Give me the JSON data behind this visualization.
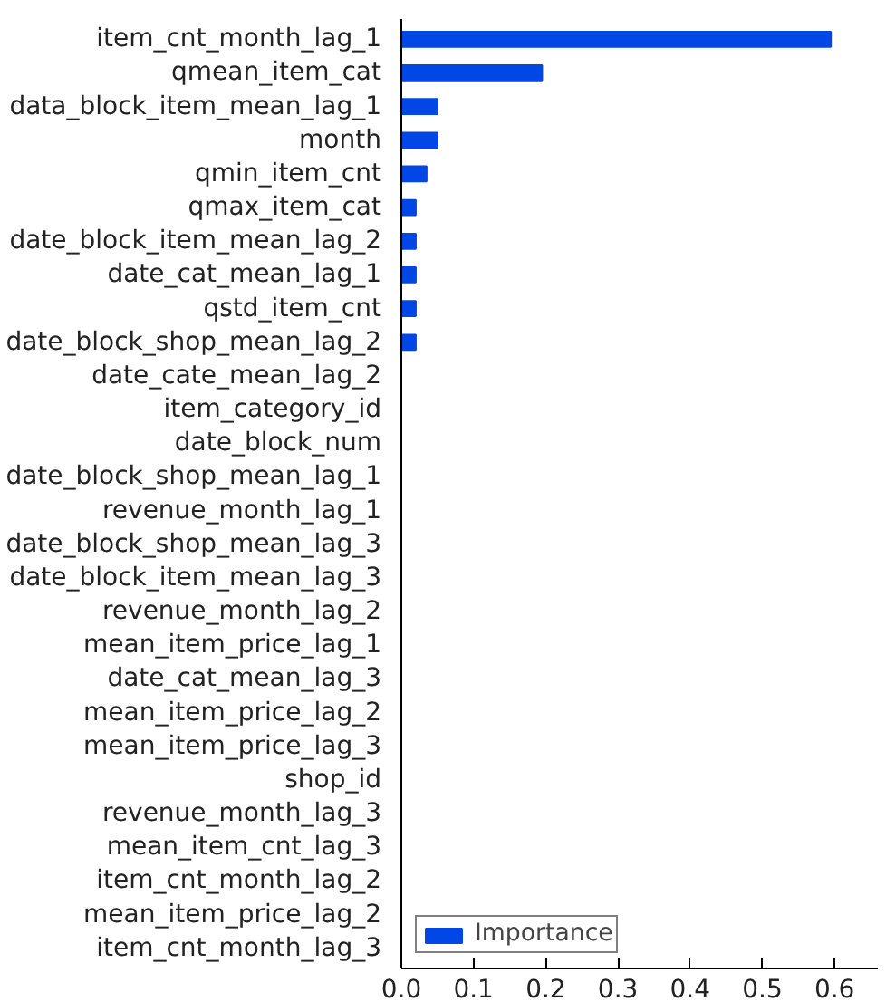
{
  "chart_data": {
    "type": "bar",
    "orientation": "horizontal",
    "categories": [
      "item_cnt_month_lag_1",
      "qmean_item_cat",
      "data_block_item_mean_lag_1",
      "month",
      "qmin_item_cnt",
      "qmax_item_cat",
      "date_block_item_mean_lag_2",
      "date_cat_mean_lag_1",
      "qstd_item_cnt",
      "date_block_shop_mean_lag_2",
      "date_cate_mean_lag_2",
      "item_category_id",
      "date_block_num",
      "date_block_shop_mean_lag_1",
      "revenue_month_lag_1",
      "date_block_shop_mean_lag_3",
      "date_block_item_mean_lag_3",
      "revenue_month_lag_2",
      "mean_item_price_lag_1",
      "date_cat_mean_lag_3",
      "mean_item_price_lag_2",
      "mean_item_price_lag_3",
      "shop_id",
      "revenue_month_lag_3",
      "mean_item_cnt_lag_3",
      "item_cnt_month_lag_2",
      "mean_item_price_lag_2",
      "item_cnt_month_lag_3"
    ],
    "series": [
      {
        "name": "Importance",
        "color": "#0047e6",
        "values": [
          0.595,
          0.195,
          0.05,
          0.05,
          0.035,
          0.02,
          0.02,
          0.02,
          0.02,
          0.02,
          0,
          0,
          0,
          0,
          0,
          0,
          0,
          0,
          0,
          0,
          0,
          0,
          0,
          0,
          0,
          0,
          0,
          0
        ]
      }
    ],
    "xlim": [
      0,
      0.66
    ],
    "xticks": [
      {
        "value": 0,
        "label": "0.0"
      },
      {
        "value": 0.1,
        "label": "0.1"
      },
      {
        "value": 0.2,
        "label": "0.2"
      },
      {
        "value": 0.3,
        "label": "0.3"
      },
      {
        "value": 0.4,
        "label": "0.4"
      },
      {
        "value": 0.5,
        "label": "0.5"
      },
      {
        "value": 0.6,
        "label": "0.6"
      }
    ],
    "legend": "bottom left",
    "grid": false
  }
}
